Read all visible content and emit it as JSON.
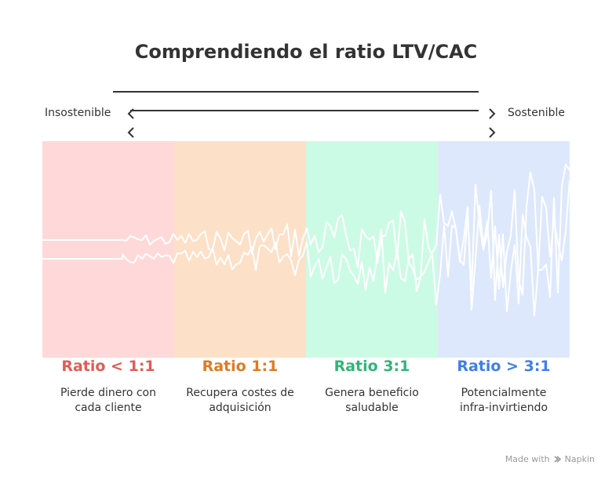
{
  "title": "Comprendiendo el ratio LTV/CAC",
  "scale": {
    "left_label": "Insostenible",
    "right_label": "Sostenible"
  },
  "segments": [
    {
      "ratio": "Ratio < 1:1",
      "description_line1": "Pierde dinero con",
      "description_line2": "cada cliente",
      "color": "#e35b55",
      "bg": "#ffd9d9"
    },
    {
      "ratio": "Ratio 1:1",
      "description_line1": "Recupera costes de",
      "description_line2": "adquisición",
      "color": "#e07a22",
      "bg": "#fde0c8"
    },
    {
      "ratio": "Ratio 3:1",
      "description_line1": "Genera beneficio",
      "description_line2": "saludable",
      "color": "#2fb678",
      "bg": "#ccfbe5"
    },
    {
      "ratio": "Ratio > 3:1",
      "description_line1": "Potencialmente",
      "description_line2": "infra-invirtiendo",
      "color": "#3f7ee8",
      "bg": "#dde8fd"
    }
  ],
  "footer": {
    "made_with": "Made with",
    "brand": "Napkin"
  }
}
